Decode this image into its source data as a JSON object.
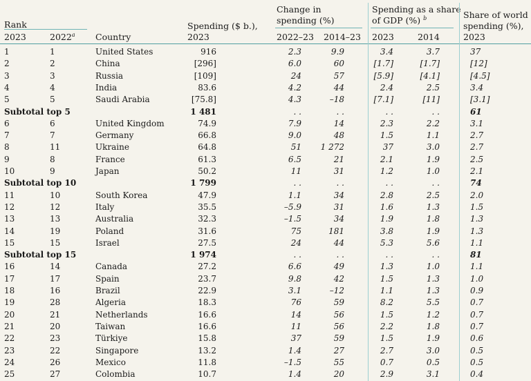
{
  "headers": {
    "rank": "Rank",
    "y2023": "2023",
    "y2022": "2022",
    "y2022_note": "a",
    "country": "Country",
    "spending_l1": "Spending ($ b.),",
    "spending_l2": "2023",
    "change_l1": "Change in",
    "change_l2": "spending (%)",
    "change_a": "2022–23",
    "change_b": "2014–23",
    "gdp_l1": "Spending as a share",
    "gdp_l2": "of GDP (%)",
    "gdp_note": "b",
    "gdp_a": "2023",
    "gdp_b": "2014",
    "world_l1": "Share of world",
    "world_l2": "spending (%),",
    "world_l3": "2023"
  },
  "rows": [
    {
      "type": "row",
      "r23": "1",
      "r22": "1",
      "country": "United States",
      "spend": "916",
      "ch1": "2.3",
      "ch2": "9.9",
      "g23": "3.4",
      "g14": "3.7",
      "world": "37"
    },
    {
      "type": "row",
      "r23": "2",
      "r22": "2",
      "country": "China",
      "spend": "[296]",
      "ch1": "6.0",
      "ch2": "60",
      "g23": "[1.7]",
      "g14": "[1.7]",
      "world": "[12]"
    },
    {
      "type": "row",
      "r23": "3",
      "r22": "3",
      "country": "Russia",
      "spend": "[109]",
      "ch1": "24",
      "ch2": "57",
      "g23": "[5.9]",
      "g14": "[4.1]",
      "world": "[4.5]"
    },
    {
      "type": "row",
      "r23": "4",
      "r22": "4",
      "country": "India",
      "spend": "83.6",
      "ch1": "4.2",
      "ch2": "44",
      "g23": "2.4",
      "g14": "2.5",
      "world": "3.4"
    },
    {
      "type": "row",
      "r23": "5",
      "r22": "5",
      "country": "Saudi Arabia",
      "spend": "[75.8]",
      "ch1": "4.3",
      "ch2": "–18",
      "g23": "[7.1]",
      "g14": "[11]",
      "world": "[3.1]"
    },
    {
      "type": "sub",
      "label": "Subtotal top 5",
      "spend": "1 481",
      "ch1": ". .",
      "ch2": ". .",
      "g23": ". .",
      "g14": ". .",
      "world": "61"
    },
    {
      "type": "row",
      "r23": "6",
      "r22": "6",
      "country": "United Kingdom",
      "spend": "74.9",
      "ch1": "7.9",
      "ch2": "14",
      "g23": "2.3",
      "g14": "2.2",
      "world": "3.1"
    },
    {
      "type": "row",
      "r23": "7",
      "r22": "7",
      "country": "Germany",
      "spend": "66.8",
      "ch1": "9.0",
      "ch2": "48",
      "g23": "1.5",
      "g14": "1.1",
      "world": "2.7"
    },
    {
      "type": "row",
      "r23": "8",
      "r22": "11",
      "country": "Ukraine",
      "spend": "64.8",
      "ch1": "51",
      "ch2": "1 272",
      "g23": "37",
      "g14": "3.0",
      "world": "2.7"
    },
    {
      "type": "row",
      "r23": "9",
      "r22": "8",
      "country": "France",
      "spend": "61.3",
      "ch1": "6.5",
      "ch2": "21",
      "g23": "2.1",
      "g14": "1.9",
      "world": "2.5"
    },
    {
      "type": "row",
      "r23": "10",
      "r22": "9",
      "country": "Japan",
      "spend": "50.2",
      "ch1": "11",
      "ch2": "31",
      "g23": "1.2",
      "g14": "1.0",
      "world": "2.1"
    },
    {
      "type": "sub",
      "label": "Subtotal top 10",
      "spend": "1 799",
      "ch1": ". .",
      "ch2": ". .",
      "g23": ". .",
      "g14": ". .",
      "world": "74"
    },
    {
      "type": "row",
      "r23": "11",
      "r22": "10",
      "country": "South Korea",
      "spend": "47.9",
      "ch1": "1.1",
      "ch2": "34",
      "g23": "2.8",
      "g14": "2.5",
      "world": "2.0"
    },
    {
      "type": "row",
      "r23": "12",
      "r22": "12",
      "country": "Italy",
      "spend": "35.5",
      "ch1": "–5.9",
      "ch2": "31",
      "g23": "1.6",
      "g14": "1.3",
      "world": "1.5"
    },
    {
      "type": "row",
      "r23": "13",
      "r22": "13",
      "country": "Australia",
      "spend": "32.3",
      "ch1": "–1.5",
      "ch2": "34",
      "g23": "1.9",
      "g14": "1.8",
      "world": "1.3"
    },
    {
      "type": "row",
      "r23": "14",
      "r22": "19",
      "country": "Poland",
      "spend": "31.6",
      "ch1": "75",
      "ch2": "181",
      "g23": "3.8",
      "g14": "1.9",
      "world": "1.3"
    },
    {
      "type": "row",
      "r23": "15",
      "r22": "15",
      "country": "Israel",
      "spend": "27.5",
      "ch1": "24",
      "ch2": "44",
      "g23": "5.3",
      "g14": "5.6",
      "world": "1.1"
    },
    {
      "type": "sub",
      "label": "Subtotal top 15",
      "spend": "1 974",
      "ch1": ". .",
      "ch2": ". .",
      "g23": ". .",
      "g14": ". .",
      "world": "81"
    },
    {
      "type": "row",
      "r23": "16",
      "r22": "14",
      "country": "Canada",
      "spend": "27.2",
      "ch1": "6.6",
      "ch2": "49",
      "g23": "1.3",
      "g14": "1.0",
      "world": "1.1"
    },
    {
      "type": "row",
      "r23": "17",
      "r22": "17",
      "country": "Spain",
      "spend": "23.7",
      "ch1": "9.8",
      "ch2": "42",
      "g23": "1.5",
      "g14": "1.3",
      "world": "1.0"
    },
    {
      "type": "row",
      "r23": "18",
      "r22": "16",
      "country": "Brazil",
      "spend": "22.9",
      "ch1": "3.1",
      "ch2": "–12",
      "g23": "1.1",
      "g14": "1.3",
      "world": "0.9"
    },
    {
      "type": "row",
      "r23": "19",
      "r22": "28",
      "country": "Algeria",
      "spend": "18.3",
      "ch1": "76",
      "ch2": "59",
      "g23": "8.2",
      "g14": "5.5",
      "world": "0.7"
    },
    {
      "type": "row",
      "r23": "20",
      "r22": "21",
      "country": "Netherlands",
      "spend": "16.6",
      "ch1": "14",
      "ch2": "56",
      "g23": "1.5",
      "g14": "1.2",
      "world": "0.7"
    },
    {
      "type": "row",
      "r23": "21",
      "r22": "20",
      "country": "Taiwan",
      "spend": "16.6",
      "ch1": "11",
      "ch2": "56",
      "g23": "2.2",
      "g14": "1.8",
      "world": "0.7"
    },
    {
      "type": "row",
      "r23": "22",
      "r22": "23",
      "country": "Türkiye",
      "spend": "15.8",
      "ch1": "37",
      "ch2": "59",
      "g23": "1.5",
      "g14": "1.9",
      "world": "0.6"
    },
    {
      "type": "row",
      "r23": "23",
      "r22": "22",
      "country": "Singapore",
      "spend": "13.2",
      "ch1": "1.4",
      "ch2": "27",
      "g23": "2.7",
      "g14": "3.0",
      "world": "0.5"
    },
    {
      "type": "row",
      "r23": "24",
      "r22": "26",
      "country": "Mexico",
      "spend": "11.8",
      "ch1": "–1.5",
      "ch2": "55",
      "g23": "0.7",
      "g14": "0.5",
      "world": "0.5"
    },
    {
      "type": "row",
      "r23": "25",
      "r22": "27",
      "country": "Colombia",
      "spend": "10.7",
      "ch1": "1.4",
      "ch2": "20",
      "g23": "2.9",
      "g14": "3.1",
      "world": "0.4"
    }
  ]
}
